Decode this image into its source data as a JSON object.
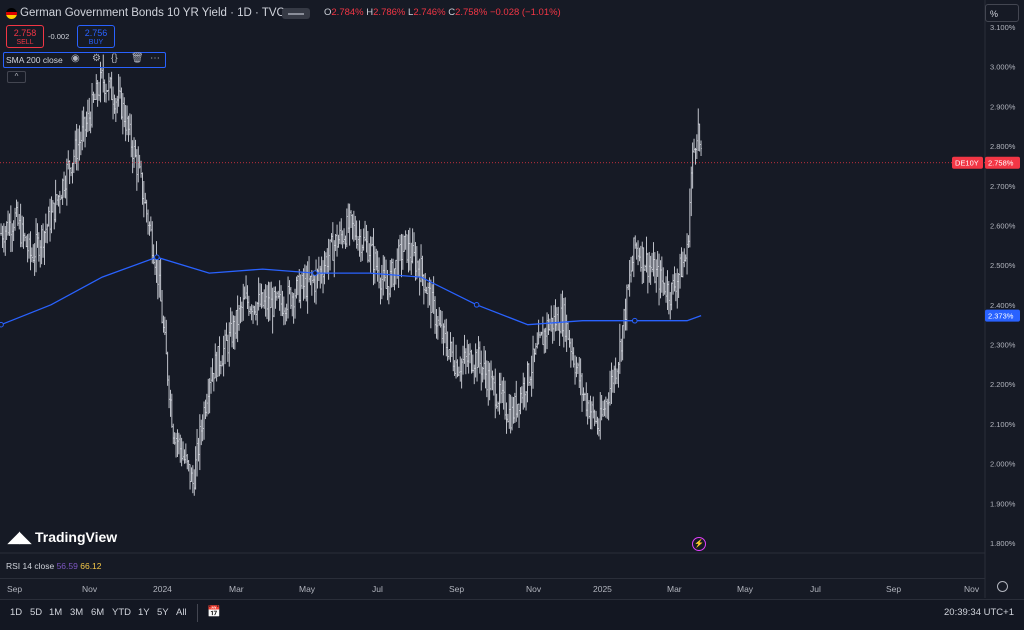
{
  "header": {
    "title": "German Government Bonds 10 YR Yield · 1D · TVC",
    "ohlc": {
      "o_label": "O",
      "o_value": "2.784%",
      "h_label": "H",
      "h_value": "2.786%",
      "l_label": "L",
      "l_value": "2.746%",
      "c_label": "C",
      "c_value": "2.758%",
      "change": "−0.028 (−1.01%)"
    },
    "unit_button": "%"
  },
  "trade": {
    "sell_price": "2.758",
    "sell_label": "SELL",
    "spread": "-0.002",
    "buy_price": "2.756",
    "buy_label": "BUY"
  },
  "indicator": {
    "label": "SMA 200 close"
  },
  "brand": {
    "logo_text": "TradingView"
  },
  "rsi": {
    "label": "RSI 14 close",
    "value1": "56.59",
    "value2": "66.12"
  },
  "time_axis": [
    "Sep",
    "Nov",
    "2024",
    "Mar",
    "May",
    "Jul",
    "Sep",
    "Nov",
    "2025",
    "Mar",
    "May",
    "Jul",
    "Sep",
    "Nov"
  ],
  "ranges": [
    "1D",
    "5D",
    "1M",
    "3M",
    "6M",
    "YTD",
    "1Y",
    "5Y",
    "All"
  ],
  "clock": "20:39:34 UTC+1",
  "colors": {
    "background": "#161a25",
    "bars": "#d1d4dc",
    "sma": "#2962ff",
    "last_price": "#f23645",
    "rsi_value1": "#7e57c2",
    "rsi_value2": "#f7c948"
  },
  "chart_data": {
    "type": "line",
    "title": "German Government Bonds 10 YR Yield · 1D · TVC",
    "y_unit": "%",
    "ylim": [
      1.76,
      3.12
    ],
    "y_ticks": [
      "3.100%",
      "3.000%",
      "2.900%",
      "2.800%",
      "2.700%",
      "2.600%",
      "2.500%",
      "2.400%",
      "2.300%",
      "2.200%",
      "2.100%",
      "2.000%",
      "1.900%",
      "1.800%"
    ],
    "x_ticks": [
      "Sep",
      "Nov",
      "2024",
      "Mar",
      "May",
      "Jul",
      "Sep",
      "Nov",
      "2025",
      "Mar",
      "May",
      "Jul",
      "Sep",
      "Nov"
    ],
    "series": [
      {
        "name": "DE10Y",
        "kind": "ohlc",
        "dates": [
          "2023-07-20",
          "2023-08-01",
          "2023-08-15",
          "2023-09-01",
          "2023-09-15",
          "2023-10-01",
          "2023-10-15",
          "2023-11-01",
          "2023-11-15",
          "2023-12-01",
          "2023-12-15",
          "2024-01-01",
          "2024-01-15",
          "2024-02-01",
          "2024-02-15",
          "2024-03-01",
          "2024-03-15",
          "2024-04-01",
          "2024-04-15",
          "2024-05-01",
          "2024-05-15",
          "2024-06-01",
          "2024-06-15",
          "2024-07-01",
          "2024-07-15",
          "2024-08-01",
          "2024-08-15",
          "2024-09-01",
          "2024-09-15",
          "2024-10-01",
          "2024-10-15",
          "2024-11-01",
          "2024-11-15",
          "2024-12-01",
          "2024-12-15",
          "2025-01-01",
          "2025-01-15",
          "2025-02-01",
          "2025-02-15",
          "2025-03-01",
          "2025-03-05",
          "2025-03-10",
          "2025-03-13"
        ],
        "values": [
          2.58,
          2.62,
          2.52,
          2.62,
          2.74,
          2.85,
          2.97,
          2.9,
          2.74,
          2.5,
          2.09,
          1.95,
          2.22,
          2.31,
          2.41,
          2.4,
          2.4,
          2.44,
          2.46,
          2.55,
          2.6,
          2.54,
          2.44,
          2.55,
          2.49,
          2.33,
          2.25,
          2.27,
          2.19,
          2.12,
          2.22,
          2.35,
          2.37,
          2.18,
          2.09,
          2.27,
          2.55,
          2.48,
          2.43,
          2.53,
          2.75,
          2.86,
          2.758
        ]
      },
      {
        "name": "SMA 200 close",
        "dates": [
          "2023-07-20",
          "2023-09-01",
          "2023-10-15",
          "2023-12-01",
          "2024-01-15",
          "2024-03-01",
          "2024-04-15",
          "2024-06-01",
          "2024-07-15",
          "2024-09-01",
          "2024-10-15",
          "2024-12-01",
          "2025-01-15",
          "2025-03-01",
          "2025-03-13"
        ],
        "values": [
          2.35,
          2.4,
          2.47,
          2.52,
          2.48,
          2.49,
          2.48,
          2.48,
          2.47,
          2.4,
          2.35,
          2.36,
          2.36,
          2.36,
          2.373
        ]
      }
    ],
    "last_price_label": {
      "symbol": "DE10Y",
      "value": "2.758%"
    },
    "sma_price_label": {
      "value": "2.373%"
    },
    "grid": false
  }
}
